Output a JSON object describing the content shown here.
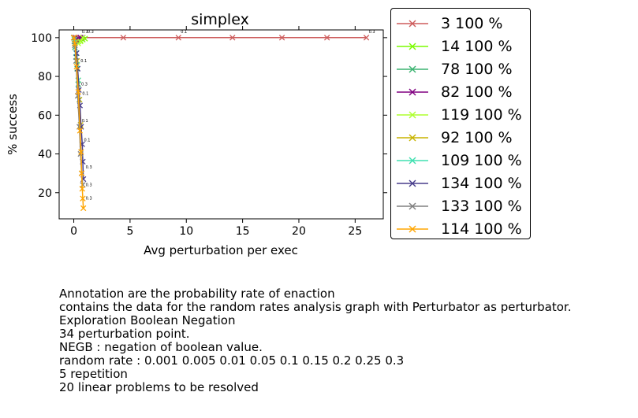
{
  "chart_data": {
    "type": "line",
    "title": "simplex",
    "xlabel": "Avg perturbation per exec",
    "ylabel": "% success",
    "xlim": [
      -1.3,
      27.5
    ],
    "ylim": [
      6.5,
      104
    ],
    "xticks": [
      0,
      5,
      10,
      15,
      20,
      25
    ],
    "yticks": [
      20,
      40,
      60,
      80,
      100
    ],
    "legend_position": "outside-right",
    "grid": false,
    "marker": "x",
    "series": [
      {
        "name": "3 100 %",
        "color": "#cd5c5c",
        "points": [
          [
            0,
            100
          ],
          [
            0.1,
            100
          ],
          [
            0.2,
            100
          ],
          [
            0.5,
            100
          ],
          [
            4.4,
            100
          ],
          [
            9.3,
            100
          ],
          [
            14.1,
            100
          ],
          [
            18.5,
            100
          ],
          [
            22.5,
            100
          ],
          [
            26.0,
            100
          ]
        ],
        "annotations": [
          {
            "x": 9.3,
            "y": 100,
            "text": "0.1"
          },
          {
            "x": 26.0,
            "y": 100,
            "text": "0.3"
          }
        ]
      },
      {
        "name": "14 100 %",
        "color": "#7cfc00",
        "points": [
          [
            0,
            100
          ],
          [
            0.2,
            99
          ],
          [
            0.4,
            98
          ],
          [
            0.6,
            98.5
          ],
          [
            0.8,
            99
          ],
          [
            1.0,
            99.5
          ]
        ],
        "annotations": [
          {
            "x": 1.0,
            "y": 100,
            "text": "0.3"
          }
        ]
      },
      {
        "name": "78 100 %",
        "color": "#3cb371",
        "points": [
          [
            0,
            100
          ],
          [
            0.05,
            98
          ],
          [
            0.1,
            95
          ],
          [
            0.2,
            90
          ],
          [
            0.3,
            84
          ],
          [
            0.4,
            76
          ],
          [
            0.5,
            68
          ]
        ],
        "annotations": []
      },
      {
        "name": "82 100 %",
        "color": "#800080",
        "points": [
          [
            0,
            100
          ],
          [
            0.2,
            99
          ],
          [
            0.4,
            99.5
          ],
          [
            0.6,
            100
          ],
          [
            0.8,
            100
          ]
        ],
        "annotations": [
          {
            "x": 0.5,
            "y": 100,
            "text": "0.3"
          }
        ]
      },
      {
        "name": "119 100 %",
        "color": "#adff2f",
        "points": [
          [
            0,
            100
          ],
          [
            0.2,
            98
          ],
          [
            0.4,
            97
          ],
          [
            0.6,
            98
          ],
          [
            0.8,
            100
          ]
        ],
        "annotations": []
      },
      {
        "name": "92 100 %",
        "color": "#c8b400",
        "points": [
          [
            0,
            100
          ],
          [
            0.1,
            97
          ],
          [
            0.3,
            88
          ],
          [
            0.4,
            78
          ],
          [
            0.5,
            68
          ],
          [
            0.6,
            55
          ]
        ],
        "annotations": []
      },
      {
        "name": "109 100 %",
        "color": "#40e0b0",
        "points": [
          [
            0,
            100
          ],
          [
            0.05,
            99
          ],
          [
            0.1,
            96
          ],
          [
            0.2,
            92
          ],
          [
            0.3,
            86
          ],
          [
            0.4,
            78
          ]
        ],
        "annotations": []
      },
      {
        "name": "134 100 %",
        "color": "#483d8b",
        "points": [
          [
            0,
            100
          ],
          [
            0.1,
            97
          ],
          [
            0.25,
            92
          ],
          [
            0.35,
            84
          ],
          [
            0.45,
            73
          ],
          [
            0.55,
            65
          ],
          [
            0.65,
            54
          ],
          [
            0.75,
            45
          ],
          [
            0.8,
            36
          ],
          [
            0.85,
            27
          ]
        ],
        "annotations": [
          {
            "x": 0.4,
            "y": 85,
            "text": "0.1"
          },
          {
            "x": 0.55,
            "y": 68,
            "text": "0.1"
          }
        ]
      },
      {
        "name": "133 100 %",
        "color": "#808080",
        "points": [
          [
            0,
            100
          ],
          [
            0.1,
            96
          ],
          [
            0.2,
            88
          ],
          [
            0.35,
            70
          ],
          [
            0.5,
            54
          ],
          [
            0.6,
            40
          ],
          [
            0.7,
            30
          ],
          [
            0.8,
            24
          ]
        ],
        "annotations": [
          {
            "x": 0.5,
            "y": 54,
            "text": "0.1"
          }
        ]
      },
      {
        "name": "114 100 %",
        "color": "#ffa500",
        "points": [
          [
            0,
            100
          ],
          [
            0.1,
            97
          ],
          [
            0.25,
            85
          ],
          [
            0.4,
            72
          ],
          [
            0.55,
            52
          ],
          [
            0.65,
            41
          ],
          [
            0.7,
            30
          ],
          [
            0.75,
            22
          ],
          [
            0.8,
            17
          ],
          [
            0.85,
            12
          ]
        ],
        "annotations": [
          {
            "x": 0.45,
            "y": 73,
            "text": "0.3"
          },
          {
            "x": 0.7,
            "y": 44,
            "text": "0.1"
          },
          {
            "x": 0.85,
            "y": 30,
            "text": "0.3"
          },
          {
            "x": 0.85,
            "y": 21,
            "text": "0.3"
          },
          {
            "x": 0.85,
            "y": 14,
            "text": "0.3"
          }
        ]
      }
    ]
  },
  "notes": [
    "Annotation are the probability rate of enaction",
    "contains the data for the random rates analysis graph with Perturbator as perturbator.",
    "Exploration Boolean Negation",
    "34 perturbation point.",
    "NEGB : negation of boolean value.",
    "random rate : 0.001 0.005 0.01 0.05 0.1 0.15 0.2 0.25 0.3",
    "5 repetition",
    "20 linear problems to be resolved"
  ]
}
